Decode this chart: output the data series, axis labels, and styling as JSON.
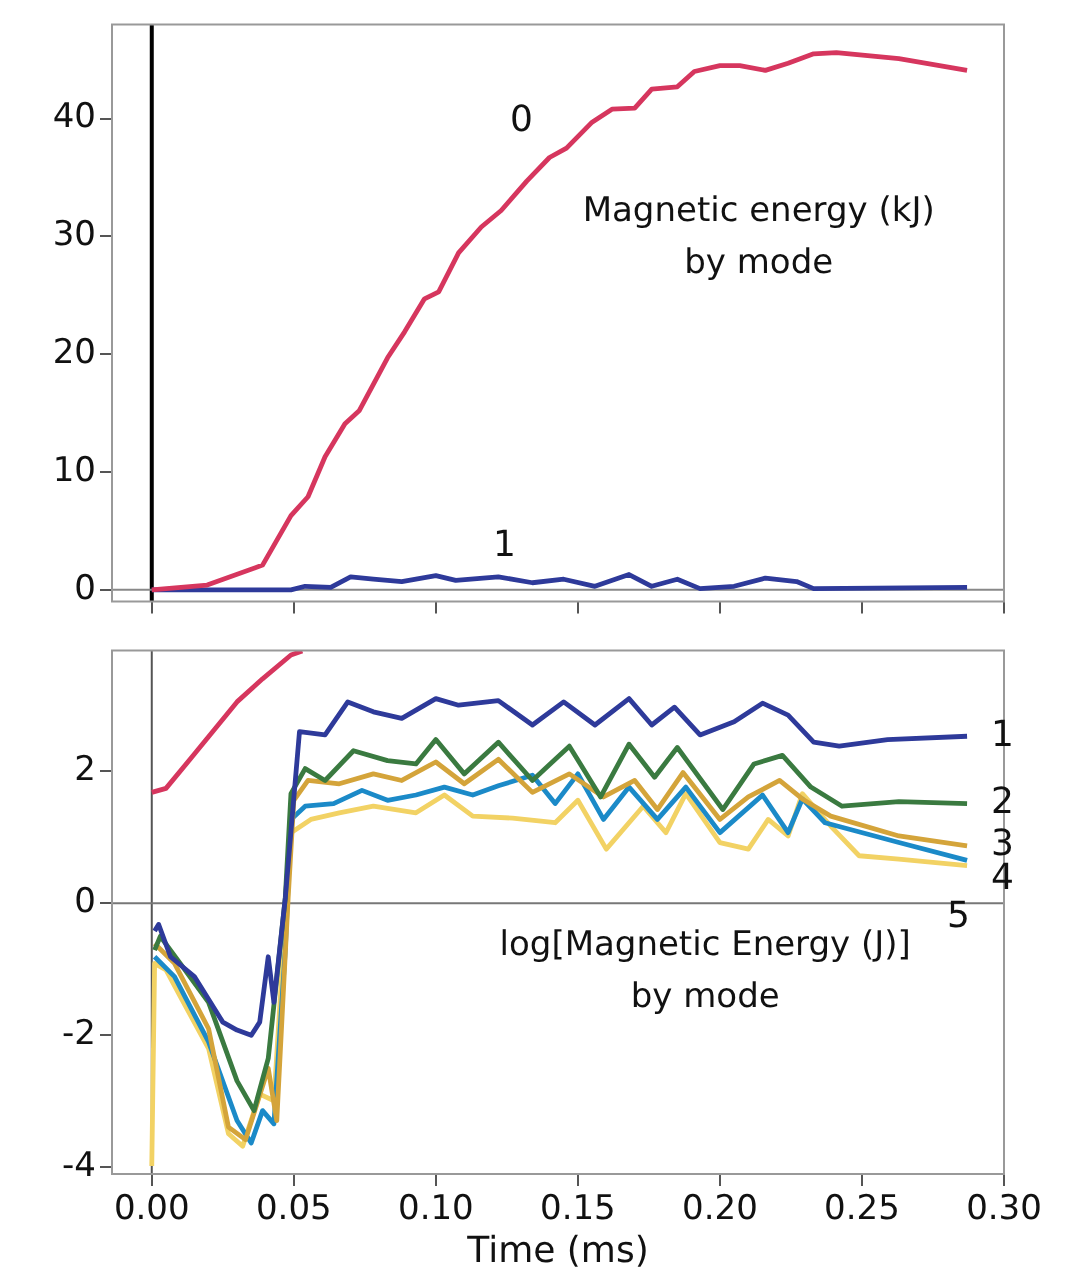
{
  "chart_data": [
    {
      "type": "line",
      "marker": "none",
      "tick_labels": "y",
      "annotations": [
        "Magnetic energy (kJ)\nby mode"
      ],
      "xlim": [
        -0.014,
        0.3
      ],
      "ylim": [
        -1,
        48
      ],
      "xticks": [
        {
          "value": 0,
          "label": null
        },
        {
          "value": 0.05,
          "label": null
        },
        {
          "value": 0.1,
          "label": null
        },
        {
          "value": 0.15,
          "label": null
        },
        {
          "value": 0.2,
          "label": null
        },
        {
          "value": 0.25,
          "label": null
        },
        {
          "value": 0.3,
          "label": null
        }
      ],
      "yticks": [
        0,
        10,
        20,
        30,
        40
      ],
      "ref_lines": [
        {
          "axis": "x",
          "value": 0,
          "color": "#000000"
        },
        {
          "axis": "y",
          "value": 0,
          "color": "#888888"
        }
      ],
      "series": [
        {
          "name": "0",
          "color": "#d6365e",
          "x": [
            0,
            0.0195,
            0.039,
            0.049,
            0.055,
            0.061,
            0.068,
            0.073,
            0.083,
            0.089,
            0.096,
            0.101,
            0.108,
            0.116,
            0.123,
            0.132,
            0.14,
            0.146,
            0.155,
            0.162,
            0.17,
            0.176,
            0.185,
            0.191,
            0.2,
            0.207,
            0.216,
            0.224,
            0.233,
            0.241,
            0.263,
            0.287
          ],
          "values": [
            0,
            0.4,
            2.1,
            6.3,
            7.9,
            11.3,
            14.1,
            15.2,
            19.7,
            21.9,
            24.7,
            25.3,
            28.6,
            30.8,
            32.2,
            34.7,
            36.7,
            37.5,
            39.7,
            40.8,
            40.9,
            42.5,
            42.7,
            44,
            44.5,
            44.5,
            44.1,
            44.7,
            45.5,
            45.6,
            45.1,
            44.1
          ]
        },
        {
          "name": "1",
          "color": "#2e3a9a",
          "x": [
            0,
            0.049,
            0.054,
            0.063,
            0.07,
            0.078,
            0.088,
            0.1,
            0.107,
            0.122,
            0.134,
            0.145,
            0.156,
            0.168,
            0.176,
            0.185,
            0.193,
            0.205,
            0.216,
            0.227,
            0.233,
            0.287
          ],
          "values": [
            0,
            0,
            0.3,
            0.2,
            1.1,
            0.9,
            0.7,
            1.2,
            0.8,
            1.1,
            0.6,
            0.9,
            0.3,
            1.3,
            0.3,
            0.9,
            0.1,
            0.3,
            1,
            0.7,
            0.1,
            0.2
          ]
        }
      ]
    },
    {
      "type": "line",
      "marker": "none",
      "xlabel": "Time (ms)",
      "annotations": [
        "log[Magnetic Energy (J)]\nby mode"
      ],
      "xlim": [
        -0.014,
        0.3
      ],
      "ylim": [
        -4.1,
        3.83
      ],
      "xticks": [
        {
          "value": 0,
          "label": "0.00"
        },
        {
          "value": 0.05,
          "label": "0.05"
        },
        {
          "value": 0.1,
          "label": "0.10"
        },
        {
          "value": 0.15,
          "label": "0.15"
        },
        {
          "value": 0.2,
          "label": "0.20"
        },
        {
          "value": 0.25,
          "label": "0.25"
        },
        {
          "value": 0.3,
          "label": "0.30"
        }
      ],
      "yticks": [
        -4,
        -2,
        0,
        2
      ],
      "ref_lines": [
        {
          "axis": "x",
          "value": 0,
          "color": "#555555"
        },
        {
          "axis": "y",
          "value": 0,
          "color": "#777777"
        }
      ],
      "series": [
        {
          "color": "#d6365e",
          "x": [
            0,
            0.005,
            0.015,
            0.03,
            0.039,
            0.049,
            0.053
          ],
          "values": [
            1.68,
            1.74,
            2.26,
            3.05,
            3.4,
            3.76,
            3.82
          ]
        },
        {
          "name": "1",
          "color": "#2e3a9a",
          "x": [
            0.001,
            0.0024,
            0.0066,
            0.015,
            0.025,
            0.03,
            0.035,
            0.038,
            0.041,
            0.043,
            0.047,
            0.052,
            0.061,
            0.069,
            0.078,
            0.088,
            0.1,
            0.108,
            0.122,
            0.134,
            0.145,
            0.156,
            0.168,
            0.176,
            0.184,
            0.193,
            0.205,
            0.215,
            0.224,
            0.233,
            0.242,
            0.259,
            0.287
          ],
          "values": [
            -0.42,
            -0.32,
            -0.81,
            -1.11,
            -1.8,
            -1.92,
            -2,
            -1.8,
            -0.81,
            -1.5,
            0.08,
            2.6,
            2.55,
            3.05,
            2.9,
            2.8,
            3.1,
            3,
            3.07,
            2.7,
            3.05,
            2.7,
            3.1,
            2.7,
            2.97,
            2.55,
            2.75,
            3.03,
            2.85,
            2.44,
            2.38,
            2.48,
            2.53
          ]
        },
        {
          "name": "2",
          "color": "#3a7a40",
          "x": [
            0.001,
            0.003,
            0.01,
            0.02,
            0.03,
            0.036,
            0.041,
            0.047,
            0.049,
            0.054,
            0.061,
            0.071,
            0.083,
            0.093,
            0.1,
            0.11,
            0.122,
            0.134,
            0.147,
            0.158,
            0.168,
            0.177,
            0.185,
            0.201,
            0.212,
            0.222,
            0.232,
            0.243,
            0.263,
            0.287
          ],
          "values": [
            -0.71,
            -0.5,
            -0.91,
            -1.5,
            -2.69,
            -3.14,
            -2.35,
            0.08,
            1.66,
            2.04,
            1.86,
            2.31,
            2.16,
            2.11,
            2.48,
            1.96,
            2.44,
            1.86,
            2.38,
            1.61,
            2.41,
            1.91,
            2.36,
            1.42,
            2.11,
            2.24,
            1.76,
            1.47,
            1.54,
            1.51
          ]
        },
        {
          "name": "3",
          "color": "#d4a43a",
          "x": [
            0.001,
            0.008,
            0.02,
            0.027,
            0.033,
            0.041,
            0.044,
            0.048,
            0.05,
            0.055,
            0.066,
            0.078,
            0.088,
            0.1,
            0.11,
            0.122,
            0.134,
            0.147,
            0.159,
            0.17,
            0.178,
            0.187,
            0.2,
            0.21,
            0.221,
            0.229,
            0.239,
            0.263,
            0.287
          ],
          "values": [
            -0.61,
            -0.91,
            -1.9,
            -3.39,
            -3.58,
            -2.5,
            -3.29,
            0.08,
            1.56,
            1.86,
            1.81,
            1.96,
            1.86,
            2.14,
            1.81,
            2.18,
            1.68,
            1.96,
            1.61,
            1.86,
            1.42,
            1.98,
            1.27,
            1.61,
            1.86,
            1.58,
            1.32,
            1.02,
            0.87
          ]
        },
        {
          "name": "4",
          "color": "#1b8ac8",
          "x": [
            0.001,
            0.008,
            0.02,
            0.03,
            0.035,
            0.039,
            0.043,
            0.047,
            0.049,
            0.054,
            0.064,
            0.074,
            0.083,
            0.093,
            0.103,
            0.113,
            0.122,
            0.134,
            0.142,
            0.15,
            0.159,
            0.168,
            0.178,
            0.188,
            0.2,
            0.215,
            0.224,
            0.229,
            0.237,
            0.263,
            0.287
          ],
          "values": [
            -0.81,
            -1.11,
            -2.1,
            -3.29,
            -3.63,
            -3.14,
            -3.34,
            -0.71,
            1.27,
            1.47,
            1.51,
            1.71,
            1.56,
            1.64,
            1.76,
            1.64,
            1.78,
            1.94,
            1.51,
            1.96,
            1.27,
            1.76,
            1.27,
            1.76,
            1.07,
            1.64,
            1.07,
            1.58,
            1.22,
            0.92,
            0.65
          ]
        },
        {
          "name": "5",
          "color": "#f2d264",
          "x": [
            0,
            0.001,
            0.005,
            0.01,
            0.02,
            0.027,
            0.032,
            0.038,
            0.043,
            0.047,
            0.049,
            0.056,
            0.066,
            0.078,
            0.093,
            0.103,
            0.113,
            0.127,
            0.142,
            0.15,
            0.16,
            0.173,
            0.181,
            0.188,
            0.2,
            0.21,
            0.217,
            0.224,
            0.229,
            0.239,
            0.249,
            0.263,
            0.287
          ],
          "values": [
            -3.98,
            -0.91,
            -1.01,
            -1.41,
            -2.2,
            -3.49,
            -3.68,
            -2.89,
            -2.99,
            -0.22,
            1.07,
            1.27,
            1.37,
            1.47,
            1.37,
            1.64,
            1.32,
            1.29,
            1.22,
            1.56,
            0.82,
            1.47,
            1.07,
            1.66,
            0.92,
            0.82,
            1.27,
            1.02,
            1.66,
            1.17,
            0.72,
            0.67,
            0.57
          ]
        }
      ]
    }
  ]
}
